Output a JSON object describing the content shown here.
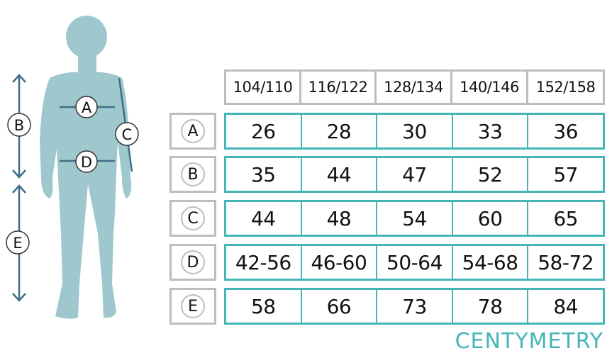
{
  "sizes": [
    "104/110",
    "116/122",
    "128/134",
    "140/146",
    "152/158"
  ],
  "rows": [
    {
      "label": "A",
      "values": [
        "26",
        "28",
        "30",
        "33",
        "36"
      ]
    },
    {
      "label": "B",
      "values": [
        "35",
        "44",
        "47",
        "52",
        "57"
      ]
    },
    {
      "label": "C",
      "values": [
        "44",
        "48",
        "54",
        "60",
        "65"
      ]
    },
    {
      "label": "D",
      "values": [
        "42-56",
        "46-60",
        "50-64",
        "54-68",
        "58-72"
      ]
    },
    {
      "label": "E",
      "values": [
        "58",
        "66",
        "73",
        "78",
        "84"
      ]
    }
  ],
  "figure_labels": {
    "A": "A",
    "B": "B",
    "C": "C",
    "D": "D",
    "E": "E"
  },
  "unit": "CENTYMETRY",
  "colors": {
    "accent": "#45b5b8",
    "body": "#9ec8cd",
    "arrow": "#3f6f89",
    "border": "#bdbdbd"
  }
}
